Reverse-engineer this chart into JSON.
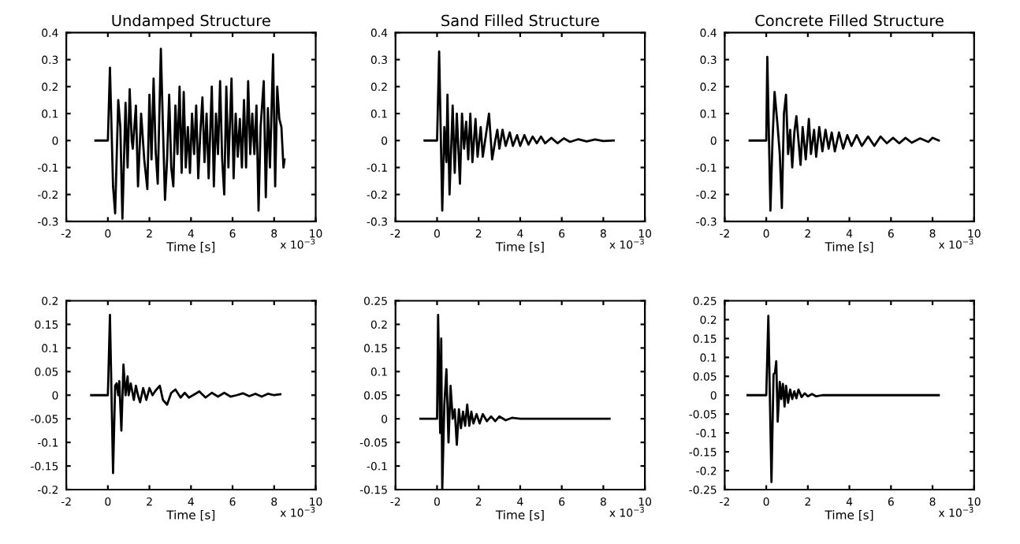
{
  "chart_data": [
    {
      "type": "line",
      "title": "Undamped Structure",
      "xlabel": "Time [s]",
      "annotations": [
        "x 10$^{−3}$"
      ],
      "xlim": [
        -2,
        10
      ],
      "xticks": [
        -2,
        0,
        2,
        4,
        6,
        8,
        10
      ],
      "ylim": [
        -0.3,
        0.4
      ],
      "yticks": [
        -0.3,
        -0.2,
        -0.1,
        0,
        0.1,
        0.2,
        0.3,
        0.4
      ],
      "series": [
        {
          "color": "#000000",
          "x": [
            -0.6,
            0,
            0.1,
            0.25,
            0.35,
            0.5,
            0.6,
            0.7,
            0.85,
            0.95,
            1.05,
            1.15,
            1.2,
            1.35,
            1.45,
            1.6,
            1.75,
            1.9,
            2.0,
            2.1,
            2.2,
            2.3,
            2.4,
            2.55,
            2.65,
            2.75,
            2.85,
            2.95,
            3.05,
            3.15,
            3.25,
            3.35,
            3.45,
            3.55,
            3.65,
            3.75,
            3.85,
            3.95,
            4.05,
            4.15,
            4.25,
            4.35,
            4.45,
            4.55,
            4.65,
            4.75,
            4.85,
            5.0,
            5.1,
            5.2,
            5.3,
            5.4,
            5.5,
            5.6,
            5.7,
            5.8,
            5.95,
            6.05,
            6.15,
            6.25,
            6.35,
            6.45,
            6.55,
            6.65,
            6.75,
            6.85,
            6.95,
            7.05,
            7.15,
            7.25,
            7.35,
            7.5,
            7.6,
            7.7,
            7.8,
            7.95,
            8.05,
            8.15,
            8.25,
            8.35,
            8.45,
            8.5
          ],
          "values": [
            0,
            0,
            0.27,
            -0.17,
            -0.27,
            0.15,
            0.05,
            -0.29,
            0.14,
            -0.1,
            0.19,
            0.0,
            -0.03,
            0.13,
            -0.17,
            0.1,
            -0.07,
            -0.18,
            0.17,
            -0.07,
            0.23,
            -0.04,
            -0.16,
            0.34,
            0.05,
            -0.22,
            -0.07,
            0.17,
            -0.1,
            -0.17,
            0.13,
            -0.05,
            0.2,
            -0.12,
            0.18,
            -0.1,
            0.05,
            -0.12,
            0.1,
            -0.05,
            0.13,
            -0.14,
            0.03,
            0.16,
            -0.08,
            0.1,
            -0.14,
            0.2,
            -0.17,
            0.1,
            -0.05,
            0.22,
            -0.07,
            -0.2,
            0.2,
            -0.1,
            0.23,
            -0.14,
            0.1,
            -0.06,
            0.08,
            -0.1,
            0.15,
            -0.1,
            0.22,
            -0.05,
            0.1,
            -0.05,
            0.13,
            -0.26,
            0.05,
            0.22,
            -0.21,
            0.12,
            -0.1,
            0.32,
            -0.17,
            0.2,
            0.08,
            0.05,
            -0.1,
            -0.07
          ]
        }
      ]
    },
    {
      "type": "line",
      "title": "Sand Filled Structure",
      "xlabel": "Time [s]",
      "annotations": [
        "x 10$^{−3}$"
      ],
      "xlim": [
        -2,
        10
      ],
      "xticks": [
        -2,
        0,
        2,
        4,
        6,
        8,
        10
      ],
      "ylim": [
        -0.3,
        0.4
      ],
      "yticks": [
        -0.3,
        -0.2,
        -0.1,
        0,
        0.1,
        0.2,
        0.3,
        0.4
      ],
      "series": [
        {
          "color": "#000000",
          "x": [
            -0.6,
            0,
            0.1,
            0.25,
            0.35,
            0.45,
            0.5,
            0.6,
            0.75,
            0.85,
            0.95,
            1.1,
            1.2,
            1.3,
            1.4,
            1.5,
            1.6,
            1.7,
            1.85,
            1.95,
            2.1,
            2.2,
            2.35,
            2.5,
            2.65,
            2.8,
            2.9,
            3.0,
            3.15,
            3.3,
            3.5,
            3.65,
            3.85,
            4.0,
            4.2,
            4.4,
            4.6,
            4.8,
            5.0,
            5.2,
            5.5,
            5.8,
            6.1,
            6.4,
            6.8,
            7.2,
            7.6,
            8.0,
            8.5
          ],
          "values": [
            0,
            0,
            0.33,
            -0.26,
            0.05,
            -0.08,
            0.17,
            -0.2,
            0.13,
            -0.12,
            0.1,
            -0.16,
            0.1,
            -0.03,
            0.07,
            -0.07,
            0.1,
            -0.08,
            0.08,
            -0.06,
            0.05,
            -0.06,
            0.02,
            0.1,
            -0.07,
            0.0,
            0.04,
            -0.03,
            0.04,
            -0.02,
            0.03,
            -0.02,
            0.02,
            -0.02,
            0.02,
            -0.015,
            0.015,
            -0.01,
            0.015,
            -0.01,
            0.01,
            -0.01,
            0.008,
            -0.005,
            0.005,
            -0.003,
            0.004,
            -0.002,
            0.0
          ]
        }
      ]
    },
    {
      "type": "line",
      "title": "Concrete Filled Structure",
      "xlabel": "Time [s]",
      "annotations": [
        "x 10$^{−3}$"
      ],
      "xlim": [
        -2,
        10
      ],
      "xticks": [
        -2,
        0,
        2,
        4,
        6,
        8,
        10
      ],
      "ylim": [
        -0.3,
        0.4
      ],
      "yticks": [
        -0.3,
        -0.2,
        -0.1,
        0,
        0.1,
        0.2,
        0.3,
        0.4
      ],
      "series": [
        {
          "color": "#000000",
          "x": [
            -0.8,
            0,
            0.05,
            0.2,
            0.3,
            0.4,
            0.55,
            0.65,
            0.75,
            0.85,
            0.95,
            1.05,
            1.15,
            1.25,
            1.35,
            1.45,
            1.55,
            1.65,
            1.75,
            1.9,
            2.05,
            2.15,
            2.3,
            2.4,
            2.55,
            2.7,
            2.85,
            3.0,
            3.15,
            3.3,
            3.5,
            3.7,
            3.9,
            4.1,
            4.35,
            4.6,
            4.9,
            5.2,
            5.5,
            5.8,
            6.1,
            6.4,
            6.7,
            7.0,
            7.4,
            7.8,
            8.0,
            8.3
          ],
          "values": [
            0,
            0,
            0.31,
            -0.26,
            0.0,
            0.18,
            0.05,
            -0.05,
            -0.25,
            0.1,
            0.17,
            -0.05,
            0.04,
            -0.1,
            0.03,
            0.09,
            0.0,
            -0.09,
            0.05,
            -0.07,
            0.08,
            -0.05,
            0.04,
            -0.06,
            0.05,
            -0.04,
            0.04,
            -0.03,
            0.03,
            -0.04,
            0.03,
            -0.03,
            0.02,
            -0.02,
            0.02,
            -0.02,
            0.015,
            -0.02,
            0.015,
            -0.01,
            0.01,
            -0.01,
            0.01,
            -0.008,
            0.008,
            -0.005,
            0.01,
            0.0
          ]
        }
      ]
    },
    {
      "type": "line",
      "xlabel": "Time [s]",
      "annotations": [
        "x 10$^{−3}$"
      ],
      "xlim": [
        -2,
        10
      ],
      "xticks": [
        -2,
        0,
        2,
        4,
        6,
        8,
        10
      ],
      "ylim": [
        -0.2,
        0.2
      ],
      "yticks": [
        -0.2,
        -0.15,
        -0.1,
        -0.05,
        0,
        0.05,
        0.1,
        0.15,
        0.2
      ],
      "series": [
        {
          "color": "#000000",
          "x": [
            -0.8,
            0,
            0.1,
            0.25,
            0.35,
            0.42,
            0.5,
            0.55,
            0.65,
            0.75,
            0.85,
            0.95,
            1.0,
            1.1,
            1.25,
            1.35,
            1.45,
            1.55,
            1.7,
            1.85,
            2.0,
            2.15,
            2.3,
            2.5,
            2.65,
            2.85,
            3.05,
            3.25,
            3.5,
            3.7,
            3.9,
            4.1,
            4.4,
            4.7,
            5.0,
            5.3,
            5.6,
            5.9,
            6.2,
            6.5,
            6.8,
            7.1,
            7.4,
            7.7,
            8.0,
            8.3
          ],
          "values": [
            0,
            0,
            0.17,
            -0.165,
            0.02,
            0.025,
            0.0,
            0.03,
            -0.075,
            0.065,
            0.0,
            0.04,
            0.0,
            0.025,
            -0.01,
            0.02,
            0.0,
            -0.015,
            0.015,
            -0.01,
            0.015,
            0.0,
            0.01,
            0.02,
            -0.01,
            -0.02,
            0.005,
            0.012,
            -0.005,
            0.005,
            -0.005,
            0.0,
            0.008,
            -0.005,
            0.005,
            -0.003,
            0.005,
            -0.003,
            0.0,
            0.004,
            -0.002,
            0.003,
            -0.003,
            0.003,
            0.0,
            0.002
          ]
        }
      ]
    },
    {
      "type": "line",
      "xlabel": "Time [s]",
      "annotations": [
        "x 10$^{−3}$"
      ],
      "xlim": [
        -2,
        10
      ],
      "xticks": [
        -2,
        0,
        2,
        4,
        6,
        8,
        10
      ],
      "ylim": [
        -0.15,
        0.25
      ],
      "yticks": [
        -0.15,
        -0.1,
        -0.05,
        0,
        0.05,
        0.1,
        0.15,
        0.2,
        0.25
      ],
      "series": [
        {
          "color": "#000000",
          "x": [
            -0.8,
            0,
            0.05,
            0.15,
            0.2,
            0.25,
            0.35,
            0.45,
            0.55,
            0.65,
            0.75,
            0.85,
            0.95,
            1.05,
            1.15,
            1.25,
            1.35,
            1.45,
            1.55,
            1.65,
            1.75,
            1.9,
            2.05,
            2.2,
            2.4,
            2.6,
            2.8,
            3.0,
            3.3,
            3.6,
            4.0,
            4.5,
            5.0,
            5.5,
            6.0,
            6.5,
            7.0,
            7.5,
            8.3
          ],
          "values": [
            0,
            0,
            0.22,
            -0.03,
            0.17,
            -0.15,
            0.03,
            0.105,
            -0.05,
            0.07,
            0.0,
            0.02,
            -0.055,
            0.02,
            -0.02,
            0.015,
            -0.015,
            0.03,
            -0.015,
            0.015,
            -0.01,
            0.01,
            -0.01,
            0.01,
            -0.005,
            0.005,
            -0.005,
            0.005,
            -0.003,
            0.002,
            0,
            0,
            0,
            0,
            0,
            0,
            0,
            0,
            0
          ]
        }
      ]
    },
    {
      "type": "line",
      "xlabel": "Time [s]",
      "annotations": [
        "x 10$^{−3}$"
      ],
      "xlim": [
        -2,
        10
      ],
      "xticks": [
        -2,
        0,
        2,
        4,
        6,
        8,
        10
      ],
      "ylim": [
        -0.25,
        0.25
      ],
      "yticks": [
        -0.25,
        -0.2,
        -0.15,
        -0.1,
        -0.05,
        0,
        0.05,
        0.1,
        0.15,
        0.2,
        0.25
      ],
      "series": [
        {
          "color": "#000000",
          "x": [
            -0.9,
            0,
            0.1,
            0.25,
            0.35,
            0.42,
            0.48,
            0.55,
            0.65,
            0.72,
            0.8,
            0.88,
            0.95,
            1.05,
            1.15,
            1.25,
            1.35,
            1.45,
            1.55,
            1.7,
            1.85,
            2.0,
            2.2,
            2.4,
            2.7,
            3.0,
            3.5,
            4.0,
            4.5,
            5.0,
            5.5,
            6.0,
            6.5,
            7.0,
            7.5,
            8.0,
            8.3
          ],
          "values": [
            0,
            0,
            0.21,
            -0.23,
            0.055,
            0.06,
            0.09,
            -0.07,
            0.035,
            -0.01,
            0.03,
            -0.03,
            0.025,
            -0.02,
            0.015,
            -0.01,
            0.01,
            -0.008,
            0.015,
            -0.005,
            0.005,
            -0.003,
            0.003,
            -0.003,
            0,
            0,
            0,
            0,
            0,
            0,
            0,
            0,
            0,
            0,
            0,
            0,
            0
          ]
        }
      ]
    }
  ]
}
